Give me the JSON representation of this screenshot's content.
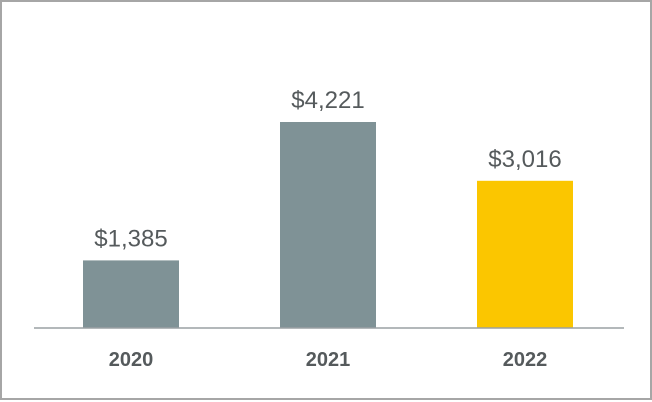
{
  "chart_data": {
    "type": "bar",
    "categories": [
      "2020",
      "2021",
      "2022"
    ],
    "values": [
      1385,
      4221,
      3016
    ],
    "value_labels": [
      "$1,385",
      "$4,221",
      "$3,016"
    ],
    "bar_colors": [
      "#7f9296",
      "#7f9296",
      "#fbc600"
    ],
    "axis_color": "#9aa0a3",
    "text_color": "#555a5c",
    "border_color": "#a6a6a6",
    "ylim": [
      0,
      4221
    ],
    "grid": false,
    "legend": "none"
  }
}
